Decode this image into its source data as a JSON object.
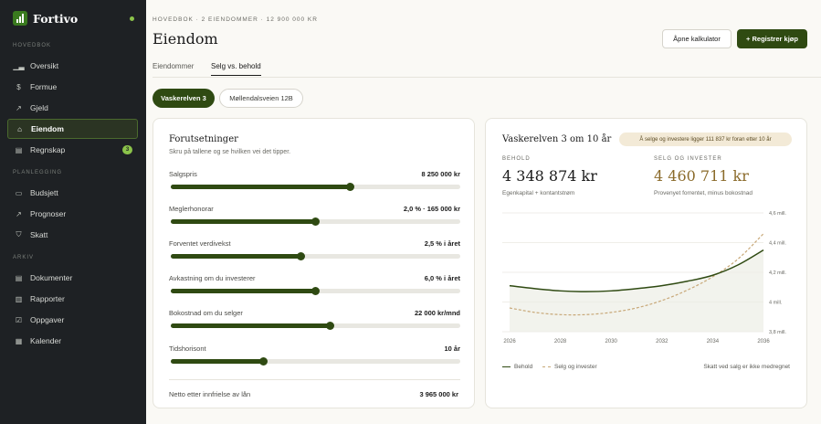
{
  "app": {
    "name": "Fortivo"
  },
  "sidebar": {
    "sections": [
      {
        "label": "HOVEDBOK",
        "items": [
          {
            "label": "Oversikt",
            "icon": "bar-chart-icon"
          },
          {
            "label": "Formue",
            "icon": "dollar-icon"
          },
          {
            "label": "Gjeld",
            "icon": "arrow-icon"
          },
          {
            "label": "Eiendom",
            "icon": "home-icon",
            "active": true
          },
          {
            "label": "Regnskap",
            "icon": "calendar-icon",
            "badge": "3"
          }
        ]
      },
      {
        "label": "PLANLEGGING",
        "items": [
          {
            "label": "Budsjett",
            "icon": "wallet-icon"
          },
          {
            "label": "Prognoser",
            "icon": "trend-icon"
          },
          {
            "label": "Skatt",
            "icon": "shield-icon"
          }
        ]
      },
      {
        "label": "ARKIV",
        "items": [
          {
            "label": "Dokumenter",
            "icon": "document-icon"
          },
          {
            "label": "Rapporter",
            "icon": "report-icon"
          },
          {
            "label": "Oppgaver",
            "icon": "checkbox-icon"
          },
          {
            "label": "Kalender",
            "icon": "calendar-icon"
          }
        ]
      }
    ]
  },
  "header": {
    "breadcrumb": "HOVEDBOK · 2 EIENDOMMER · 12 900 000 KR",
    "title": "Eiendom",
    "btn_calculator": "Åpne kalkulator",
    "btn_register": "+ Registrer kjøp"
  },
  "tabs": [
    {
      "label": "Eiendommer",
      "active": false
    },
    {
      "label": "Selg vs. behold",
      "active": true
    }
  ],
  "properties": [
    {
      "label": "Vaskerelven 3",
      "active": true
    },
    {
      "label": "Møllendalsveien 12B",
      "active": false
    }
  ],
  "assumptions": {
    "title": "Forutsetninger",
    "subtitle": "Skru på tallene og se hvilken vei det tipper.",
    "sliders": [
      {
        "label": "Salgspris",
        "value": "8 250 000 kr",
        "level": 0.62
      },
      {
        "label": "Meglerhonorar",
        "value": "2,0 % · 165 000 kr",
        "level": 0.5
      },
      {
        "label": "Forventet verdivekst",
        "value": "2,5 % i året",
        "level": 0.45
      },
      {
        "label": "Avkastning om du investerer",
        "value": "6,0 % i året",
        "level": 0.5
      },
      {
        "label": "Bokostnad om du selger",
        "value": "22 000 kr/mnd",
        "level": 0.55
      },
      {
        "label": "Tidshorisont",
        "value": "10 år",
        "level": 0.32
      }
    ],
    "footer_label": "Netto etter innfrielse av lån",
    "footer_value": "3 965 000 kr"
  },
  "comparison": {
    "title": "Vaskerelven 3 om 10 år",
    "badge": "Å selge og investere ligger 111 837 kr foran etter 10 år",
    "keep": {
      "label": "BEHOLD",
      "value": "4 348 874 kr",
      "sub": "Egenkapital + kontantstrøm"
    },
    "sell": {
      "label": "SELG OG INVESTER",
      "value": "4 460 711 kr",
      "sub": "Provenyet forrentet, minus bokostnad"
    },
    "legend_keep": "Behold",
    "legend_sell": "Selg og invester",
    "note": "Skatt ved salg er ikke medregnet"
  },
  "colors": {
    "accent": "#2f4a12",
    "gold": "#8a6a2a",
    "sell_line": "#c8a878",
    "sidebar_bg": "#1e2124"
  },
  "chart_data": {
    "type": "line",
    "x_tick_labels": [
      "2026",
      "2028",
      "2030",
      "2032",
      "2034",
      "2036"
    ],
    "y_tick_labels": [
      "3,8 mill.",
      "4 mill.",
      "4,2 mill.",
      "4,4 mill.",
      "4,6 mill."
    ],
    "ylim": [
      3.8,
      4.6
    ],
    "series": [
      {
        "name": "Behold",
        "x": [
          0,
          1,
          2,
          3,
          4,
          5,
          6,
          7,
          8,
          9,
          10
        ],
        "values": [
          4.11,
          4.09,
          4.075,
          4.07,
          4.075,
          4.09,
          4.11,
          4.14,
          4.18,
          4.25,
          4.35
        ]
      },
      {
        "name": "Selg og invester",
        "x": [
          0,
          1,
          2,
          3,
          4,
          5,
          6,
          7,
          8,
          9,
          10
        ],
        "values": [
          3.96,
          3.93,
          3.915,
          3.915,
          3.93,
          3.96,
          4.01,
          4.08,
          4.17,
          4.29,
          4.46
        ]
      }
    ],
    "grid": "horizontal",
    "legend": "bottom-left"
  }
}
